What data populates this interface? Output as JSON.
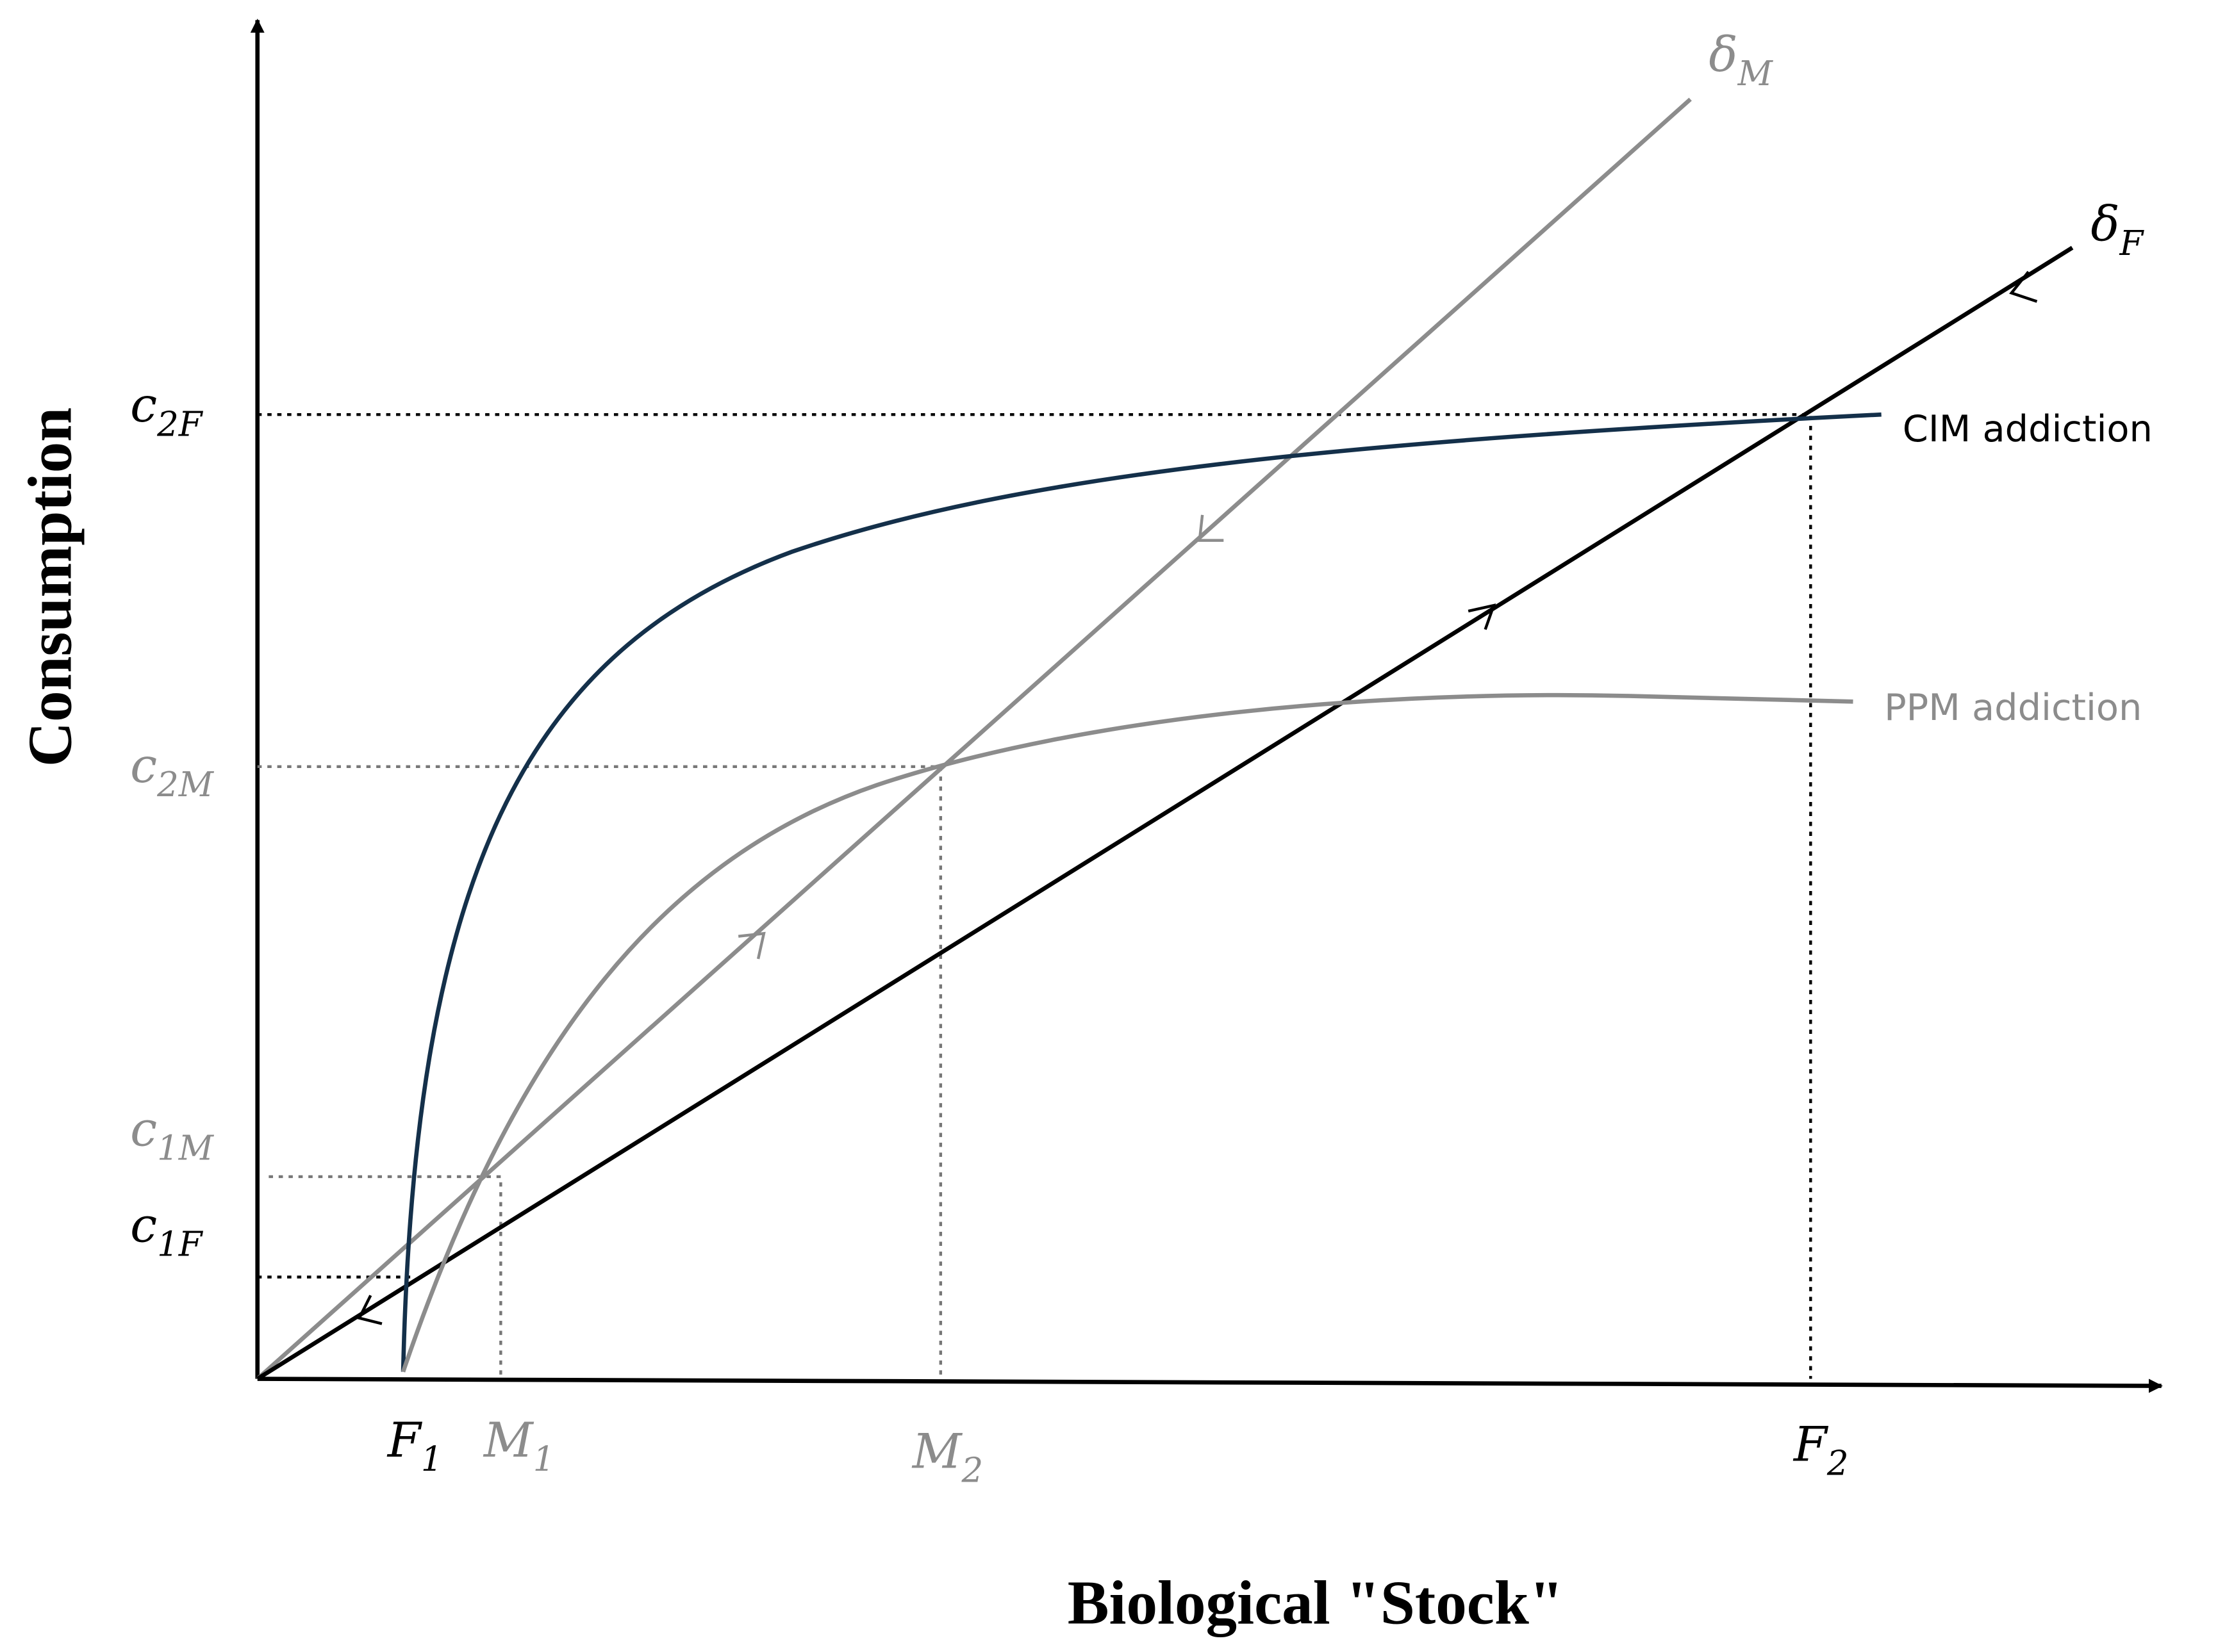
{
  "axes": {
    "y_title": "Consumption",
    "x_title": "Biological \"Stock\""
  },
  "y_labels": [
    {
      "main": "c",
      "sub": "2F"
    },
    {
      "main": "c",
      "sub": "2M"
    },
    {
      "main": "c",
      "sub": "1M"
    },
    {
      "main": "c",
      "sub": "1F"
    }
  ],
  "x_labels": [
    {
      "main": "F",
      "sub": "1"
    },
    {
      "main": "M",
      "sub": "1"
    },
    {
      "main": "M",
      "sub": "2"
    },
    {
      "main": "F",
      "sub": "2"
    }
  ],
  "lines": [
    {
      "main": "δ",
      "sub": "M"
    },
    {
      "main": "δ",
      "sub": "F"
    }
  ],
  "curves": [
    "CIM addiction",
    "PPM addiction"
  ]
}
